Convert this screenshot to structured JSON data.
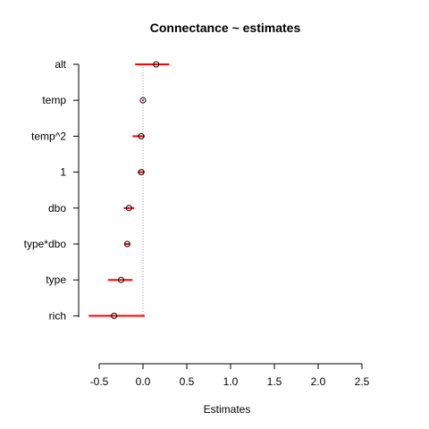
{
  "chart_data": {
    "type": "forest",
    "title": "Connectance ~ estimates",
    "xlabel": "Estimates",
    "ylabel": "",
    "xlim": [
      -0.6,
      2.5
    ],
    "x_ticks": [
      "-0.5",
      "0.0",
      "0.5",
      "1.0",
      "1.5",
      "2.0",
      "2.5"
    ],
    "reference_line": 0,
    "grid": false,
    "colors": {
      "interval": "#ff0000",
      "point": "#000000",
      "reference_line": "#9a9a9a"
    },
    "categories": [
      "alt",
      "temp",
      "temp^2",
      "1",
      "dbo",
      "type*dbo",
      "type",
      "rich"
    ],
    "points": [
      {
        "label": "alt",
        "estimate": 0.15,
        "lower": -0.09,
        "upper": 0.3
      },
      {
        "label": "temp",
        "estimate": 0.0,
        "lower": -0.01,
        "upper": 0.01
      },
      {
        "label": "temp^2",
        "estimate": -0.02,
        "lower": -0.12,
        "upper": 0.02
      },
      {
        "label": "1",
        "estimate": -0.02,
        "lower": -0.06,
        "upper": 0.02
      },
      {
        "label": "dbo",
        "estimate": -0.16,
        "lower": -0.22,
        "upper": -0.1
      },
      {
        "label": "type*dbo",
        "estimate": -0.18,
        "lower": -0.21,
        "upper": -0.15
      },
      {
        "label": "type",
        "estimate": -0.25,
        "lower": -0.4,
        "upper": -0.12
      },
      {
        "label": "rich",
        "estimate": -0.33,
        "lower": -0.62,
        "upper": 0.02
      }
    ]
  }
}
